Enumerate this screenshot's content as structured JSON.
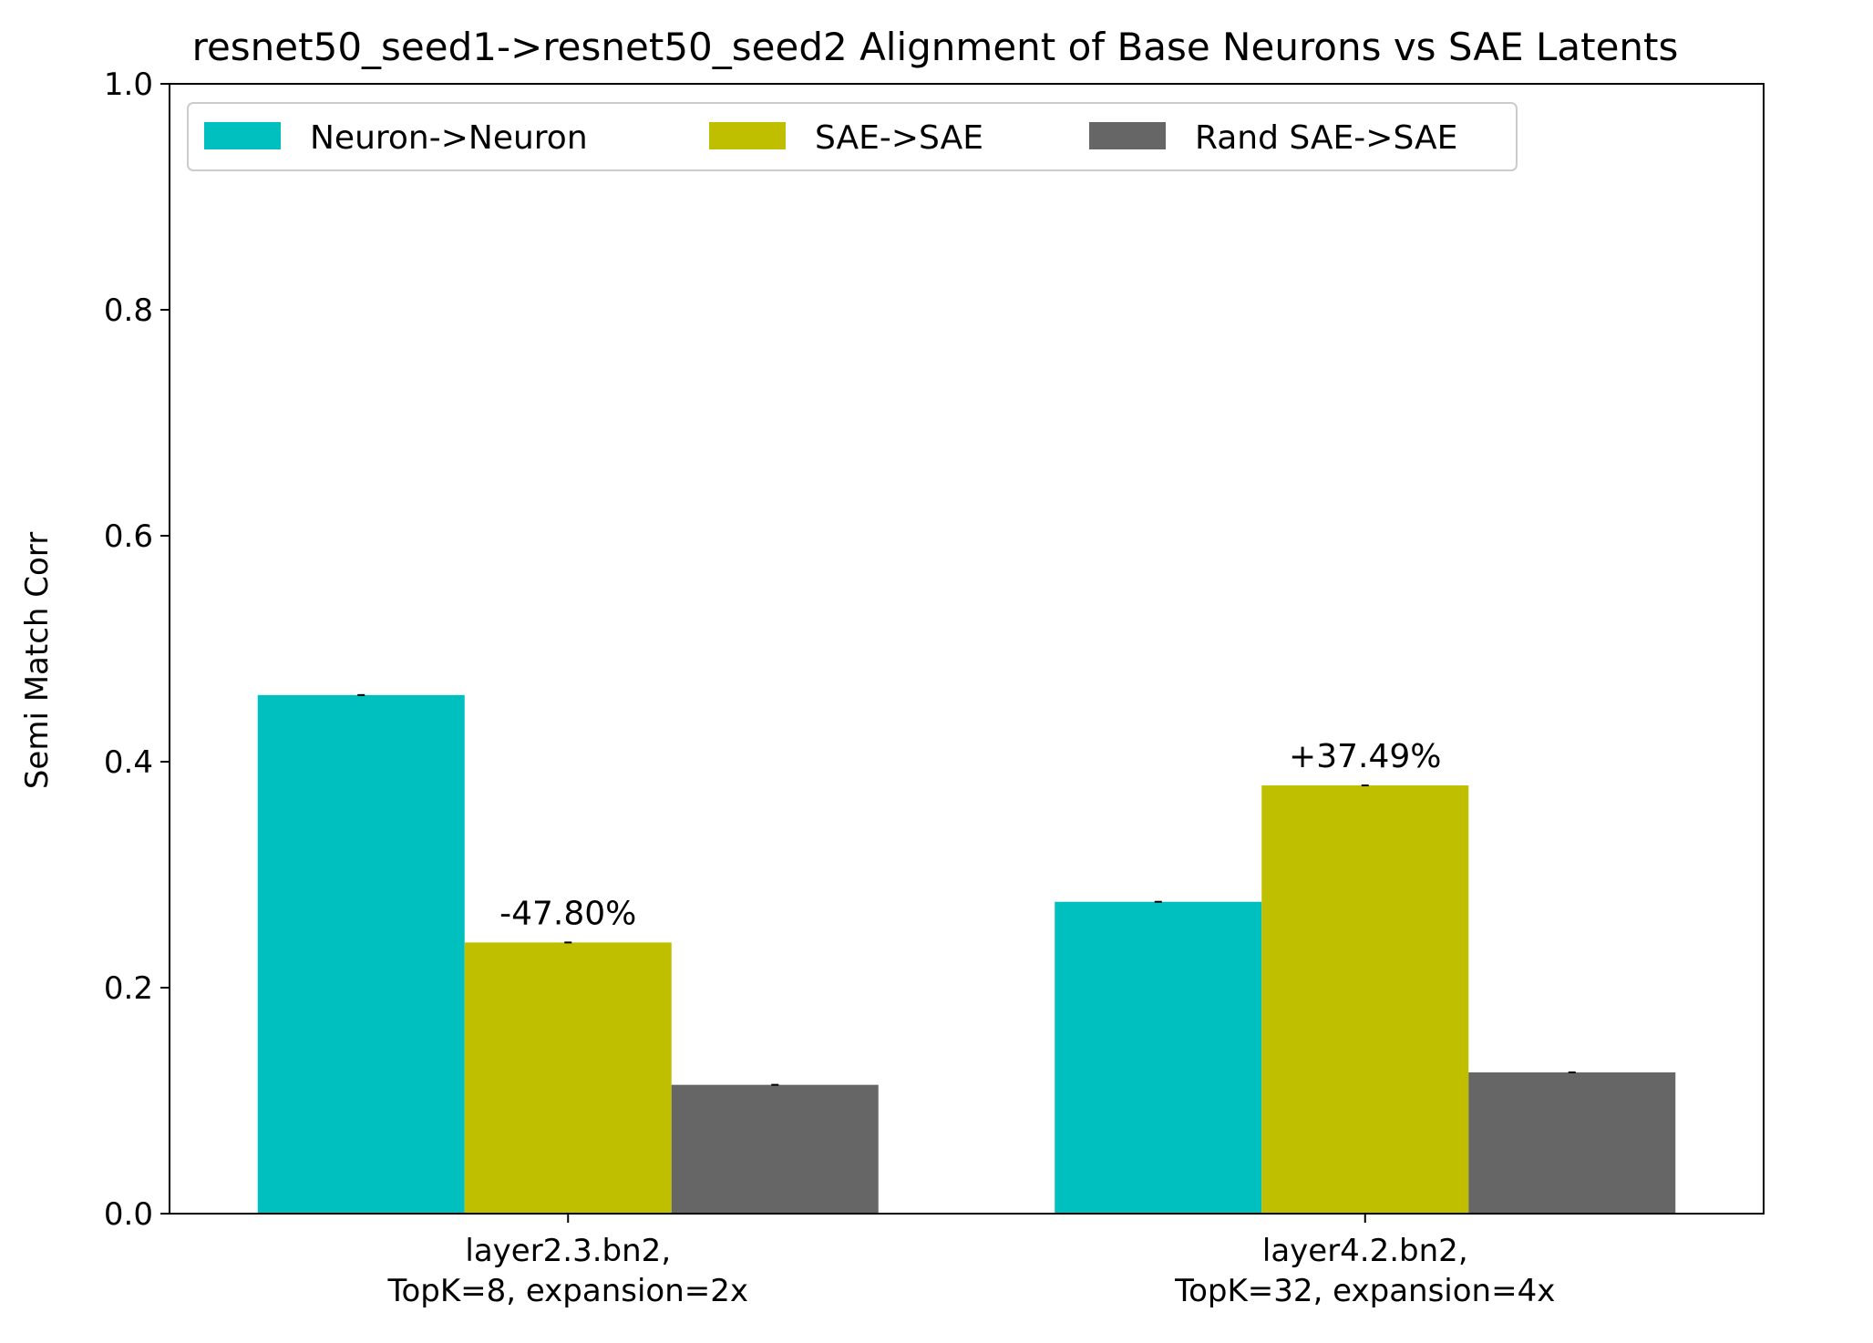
{
  "chart_data": {
    "type": "bar",
    "title": "resnet50_seed1->resnet50_seed2 Alignment of Base Neurons vs SAE Latents",
    "xlabel": "",
    "ylabel": "Semi Match Corr",
    "ylim": [
      0,
      1.0
    ],
    "yticks": [
      "0.0",
      "0.2",
      "0.4",
      "0.6",
      "0.8",
      "1.0"
    ],
    "categories": [
      [
        "layer2.3.bn2,",
        "TopK=8, expansion=2x"
      ],
      [
        "layer4.2.bn2,",
        "TopK=32, expansion=4x"
      ]
    ],
    "series": [
      {
        "name": "Neuron->Neuron",
        "color": "#00bfbf",
        "values": [
          0.459,
          0.276
        ]
      },
      {
        "name": "SAE->SAE",
        "color": "#bfbf00",
        "values": [
          0.24,
          0.379
        ]
      },
      {
        "name": "Rand SAE->SAE",
        "color": "#666666",
        "values": [
          0.114,
          0.125
        ]
      }
    ],
    "annotations": [
      {
        "category_index": 0,
        "series_index": 1,
        "text": "-47.80%"
      },
      {
        "category_index": 1,
        "series_index": 1,
        "text": "+37.49%"
      }
    ],
    "legend": {
      "placement": "top-left",
      "ncol": 3
    },
    "grid": false
  }
}
